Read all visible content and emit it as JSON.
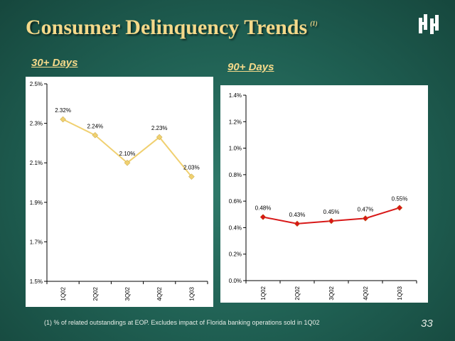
{
  "title": "Consumer Delinquency Trends",
  "title_note": "(1)",
  "footnote": "(1)   % of related outstandings at EOP. Excludes impact of Florida banking operations sold in 1Q02",
  "page_number": "33",
  "colors": {
    "accent": "#f4d98a",
    "line_30": "#f0d070",
    "line_90": "#d81818"
  },
  "chart_data": [
    {
      "type": "line",
      "title": "30+ Days",
      "categories": [
        "1Q02",
        "2Q02",
        "3Q02",
        "4Q02",
        "1Q03"
      ],
      "values": [
        2.32,
        2.24,
        2.1,
        2.23,
        2.03
      ],
      "labels": [
        "2.32%",
        "2.24%",
        "2.10%",
        "2.23%",
        "2.03%"
      ],
      "ylim": [
        1.5,
        2.5
      ],
      "yticks": [
        1.5,
        1.7,
        1.9,
        2.1,
        2.3,
        2.5
      ],
      "ytick_labels": [
        "1.5%",
        "1.7%",
        "1.9%",
        "2.1%",
        "2.3%",
        "2.5%"
      ],
      "grid": false
    },
    {
      "type": "line",
      "title": "90+ Days",
      "categories": [
        "1Q02",
        "2Q02",
        "3Q02",
        "4Q02",
        "1Q03"
      ],
      "values": [
        0.48,
        0.43,
        0.45,
        0.47,
        0.55
      ],
      "labels": [
        "0.48%",
        "0.43%",
        "0.45%",
        "0.47%",
        "0.55%"
      ],
      "ylim": [
        0.0,
        1.4
      ],
      "yticks": [
        0.0,
        0.2,
        0.4,
        0.6,
        0.8,
        1.0,
        1.2,
        1.4
      ],
      "ytick_labels": [
        "0.0%",
        "0.2%",
        "0.4%",
        "0.6%",
        "0.8%",
        "1.0%",
        "1.2%",
        "1.4%"
      ],
      "grid": false
    }
  ]
}
